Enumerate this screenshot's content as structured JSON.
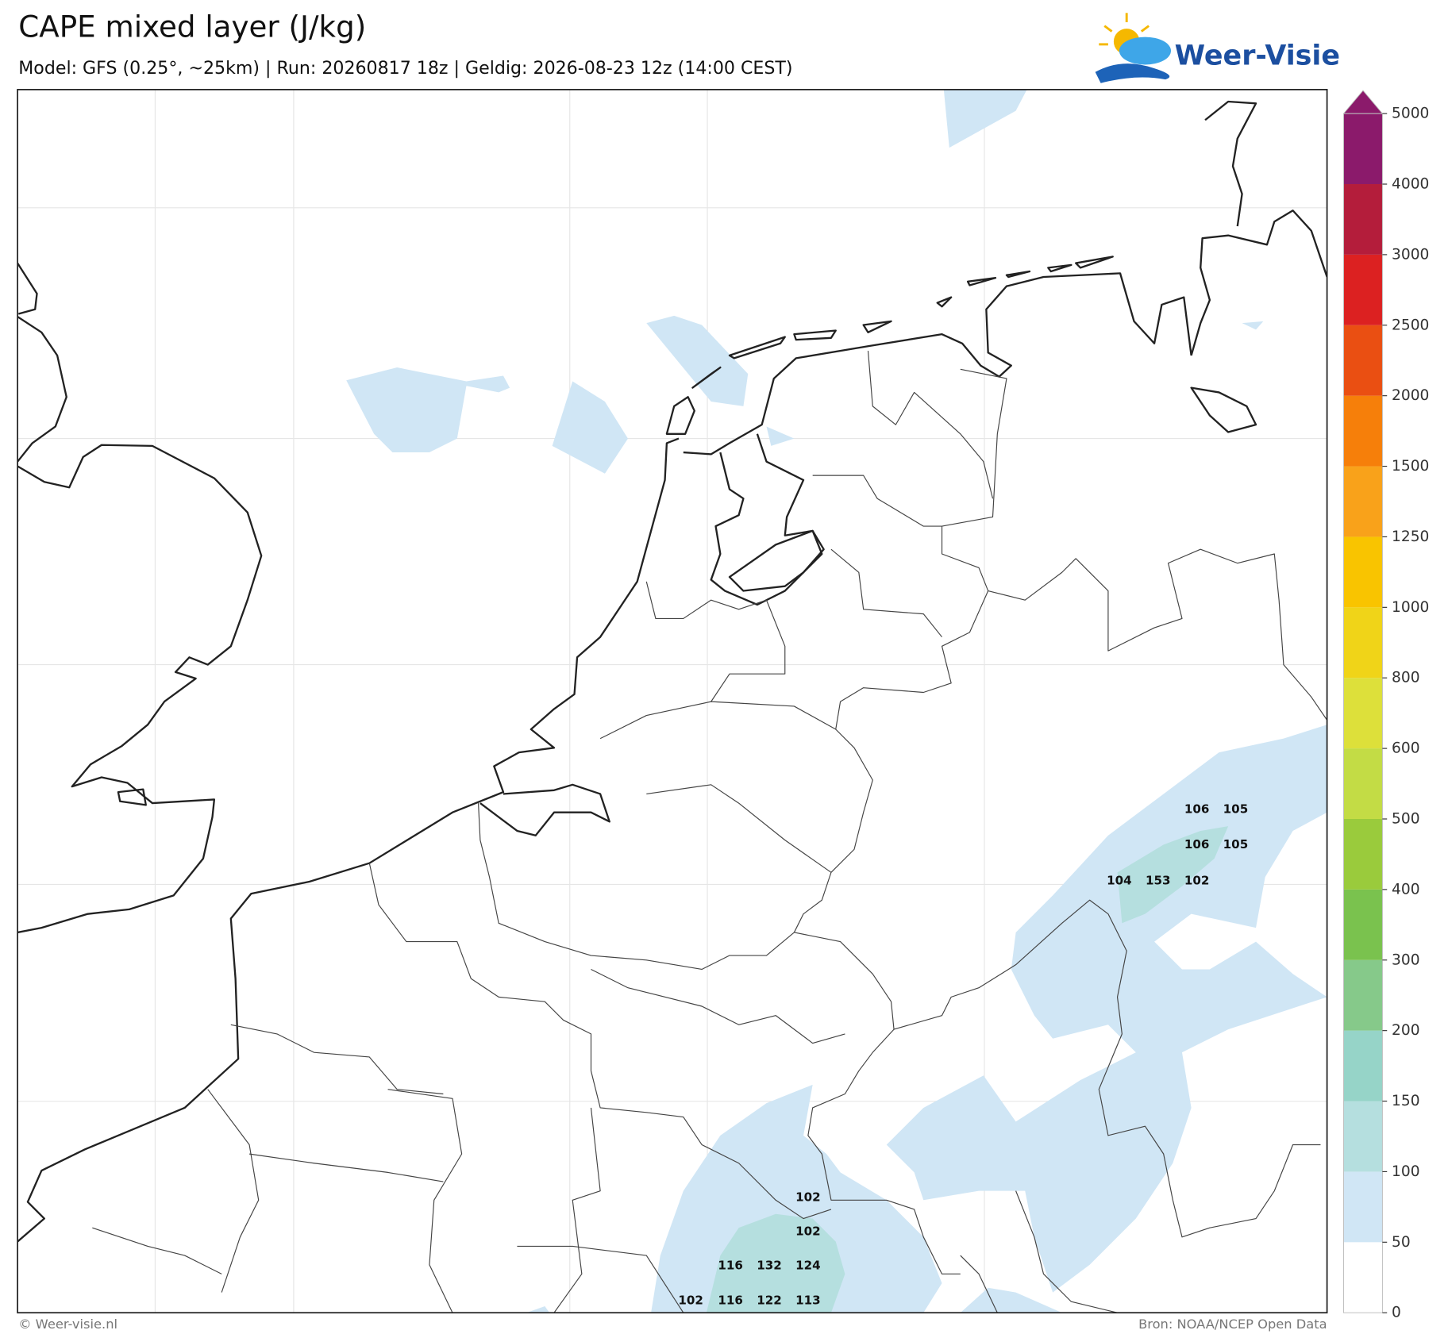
{
  "header": {
    "title": "CAPE mixed layer (J/kg)",
    "subtitle": "Model: GFS (0.25°, ~25km)  |  Run: 20260817 18z  |  Geldig: 2026-08-23 12z (14:00 CEST)",
    "logo": "Weer-Visie"
  },
  "map": {
    "value_labels": [
      106,
      105,
      106,
      105,
      104,
      153,
      102,
      102,
      102,
      116,
      132,
      124,
      102,
      116,
      122,
      113
    ]
  },
  "colorbar": {
    "ticks": [
      0,
      50,
      100,
      150,
      200,
      300,
      400,
      500,
      600,
      800,
      1000,
      1250,
      1500,
      2000,
      2500,
      3000,
      4000,
      5000
    ],
    "colors": [
      "#ffffff",
      "#d0e6f5",
      "#b5dfdf",
      "#96d4c8",
      "#86c98a",
      "#7ac24e",
      "#9acb3c",
      "#c3dc45",
      "#dde03a",
      "#f0d418",
      "#f9c400",
      "#f9a21a",
      "#f67f0a",
      "#ea4f12",
      "#dc2121",
      "#b41d3b",
      "#8b1a6b"
    ],
    "extend_color": "#8b1a6b"
  },
  "footer": {
    "left": "© Weer-visie.nl",
    "right": "Bron: NOAA/NCEP Open Data"
  }
}
